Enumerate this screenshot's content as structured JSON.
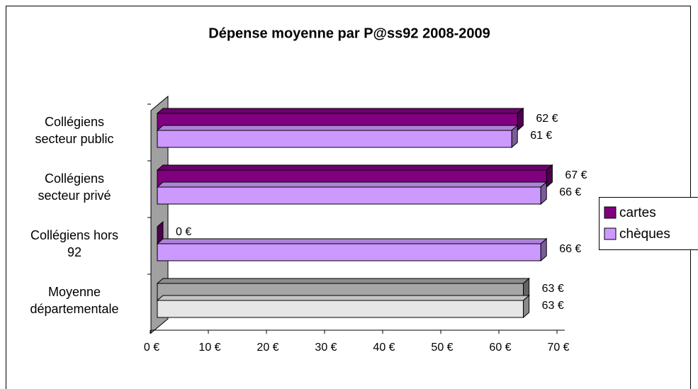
{
  "chart_data": {
    "type": "bar3d_horizontal",
    "title": "Dépense moyenne par P@ss92  2008-2009",
    "categories": [
      "Collégiens\nsecteur public",
      "Collégiens\nsecteur privé",
      "Collégiens hors\n92",
      "Moyenne\ndépartementale"
    ],
    "series": [
      {
        "name": "cartes",
        "color": "#800080",
        "colors": [
          "#800080",
          "#800080",
          "#800080",
          "#a6a6a6"
        ],
        "values": [
          62,
          67,
          0,
          63
        ],
        "value_labels": [
          "62 €",
          "67 €",
          "0 €",
          "63 €"
        ]
      },
      {
        "name": "chèques",
        "color": "#cc99ff",
        "colors": [
          "#cc99ff",
          "#cc99ff",
          "#cc99ff",
          "#e6e6e6"
        ],
        "values": [
          61,
          66,
          66,
          63
        ],
        "value_labels": [
          "61 €",
          "66 €",
          "66 €",
          "63 €"
        ]
      }
    ],
    "xlim": [
      0,
      70
    ],
    "xticks": [
      {
        "value": 0,
        "label": "0 €"
      },
      {
        "value": 10,
        "label": "10 €"
      },
      {
        "value": 20,
        "label": "20 €"
      },
      {
        "value": 30,
        "label": "30 €"
      },
      {
        "value": 40,
        "label": "40 €"
      },
      {
        "value": 50,
        "label": "50 €"
      },
      {
        "value": 60,
        "label": "60 €"
      },
      {
        "value": 70,
        "label": "70 €"
      }
    ],
    "legend": "right"
  }
}
